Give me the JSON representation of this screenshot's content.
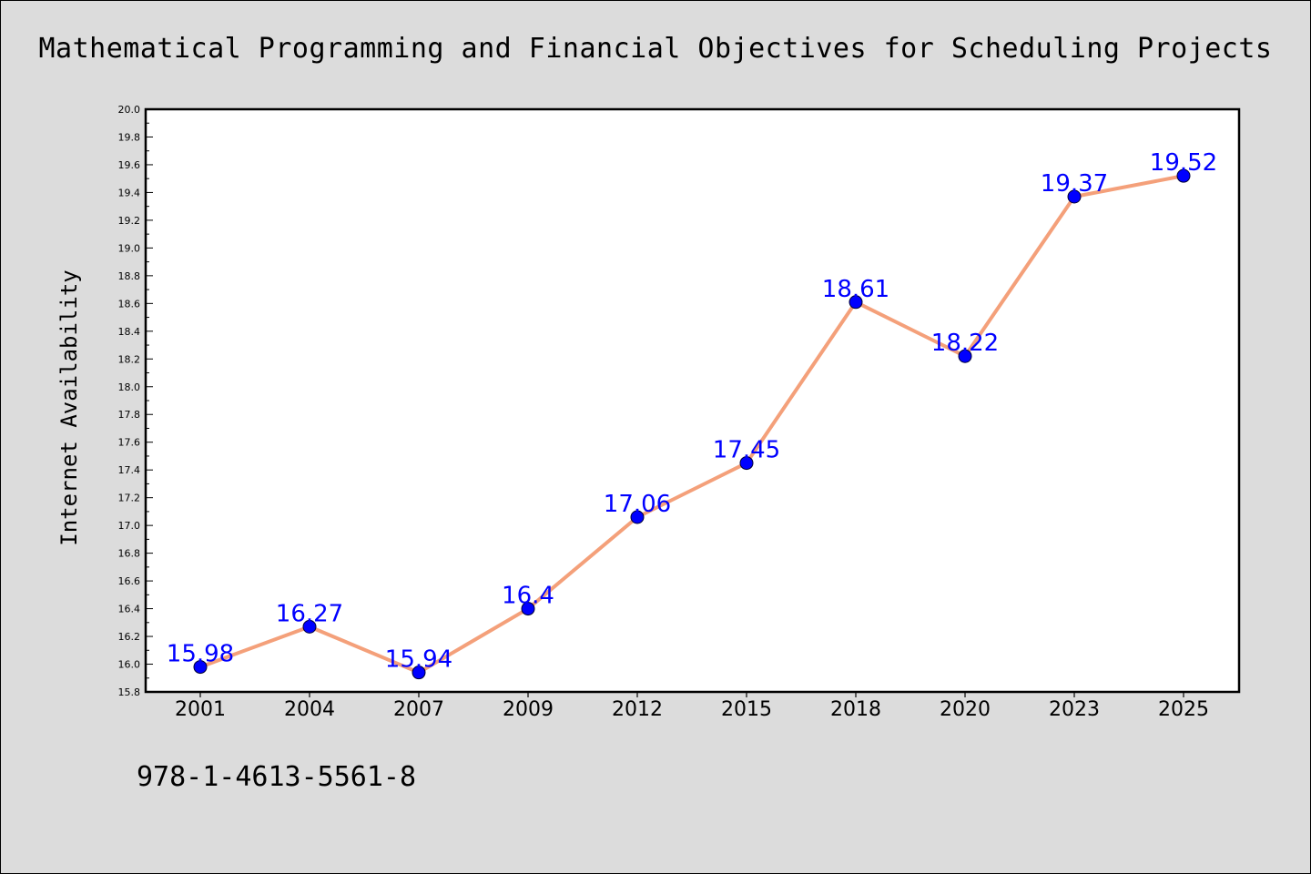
{
  "title": "Mathematical Programming and Financial Objectives for Scheduling Projects",
  "footer": {
    "isbn": "978-1-4613-5561-8"
  },
  "colors": {
    "background": "#dcdcdc",
    "plot_background": "#ffffff",
    "line": "#f4a07a",
    "marker": "#0000ff",
    "data_label": "#0000ff"
  },
  "chart_data": {
    "type": "line",
    "title": "Mathematical Programming and Financial Objectives for Scheduling Projects",
    "xlabel": "",
    "ylabel": "Internet Availability",
    "categories": [
      "2001",
      "2004",
      "2007",
      "2009",
      "2012",
      "2015",
      "2018",
      "2020",
      "2023",
      "2025"
    ],
    "series": [
      {
        "values": [
          15.98,
          16.27,
          15.94,
          16.4,
          17.06,
          17.45,
          18.61,
          18.22,
          19.37,
          19.52
        ],
        "labels": [
          "15.98",
          "16.27",
          "15.94",
          "16.4",
          "17.06",
          "17.45",
          "18.61",
          "18.22",
          "19.37",
          "19.52"
        ]
      }
    ],
    "ylim": [
      15.8,
      20.0
    ],
    "y_ticks": [
      "15.8",
      "16.0",
      "16.2",
      "16.4",
      "16.6",
      "16.8",
      "17.0",
      "17.2",
      "17.4",
      "17.6",
      "17.8",
      "18.0",
      "18.2",
      "18.4",
      "18.6",
      "18.8",
      "19.0",
      "19.2",
      "19.4",
      "19.6",
      "19.8",
      "20.0"
    ],
    "grid": false,
    "legend": "none"
  }
}
